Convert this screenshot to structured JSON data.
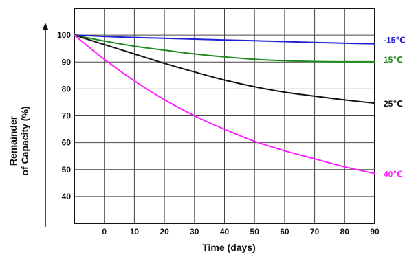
{
  "chart_data": {
    "type": "line",
    "title": "",
    "xlabel": "Time (days)",
    "ylabel_lines": [
      "Remainder",
      "of Capacity (%)"
    ],
    "xlim": [
      -10,
      90
    ],
    "ylim": [
      30,
      110
    ],
    "x_ticks": [
      0,
      10,
      20,
      30,
      40,
      50,
      60,
      70,
      80,
      90
    ],
    "y_ticks": [
      40,
      50,
      60,
      70,
      80,
      90,
      100
    ],
    "grid": true,
    "legend": "right-end labels",
    "series": [
      {
        "name": "-15℃",
        "color": "#1f1fd6",
        "x": [
          -10,
          0,
          10,
          20,
          30,
          40,
          50,
          60,
          70,
          80,
          90
        ],
        "y": [
          100,
          99.5,
          99.1,
          98.8,
          98.5,
          98.2,
          97.9,
          97.6,
          97.3,
          97.0,
          96.8
        ]
      },
      {
        "name": "15℃",
        "color": "#1e8a1e",
        "x": [
          -10,
          0,
          10,
          20,
          30,
          40,
          50,
          60,
          70,
          80,
          90
        ],
        "y": [
          100,
          97.8,
          95.9,
          94.4,
          93.0,
          91.9,
          91.0,
          90.5,
          90.2,
          90.1,
          90.1
        ]
      },
      {
        "name": "25℃",
        "color": "#111111",
        "x": [
          -10,
          0,
          10,
          20,
          30,
          40,
          50,
          60,
          70,
          80,
          90
        ],
        "y": [
          100,
          96.5,
          93.0,
          89.5,
          86.3,
          83.3,
          80.8,
          78.8,
          77.3,
          75.9,
          74.7
        ]
      },
      {
        "name": "40℃",
        "color": "#ff1fff",
        "x": [
          -10,
          0,
          10,
          20,
          30,
          40,
          50,
          60,
          70,
          80,
          90
        ],
        "y": [
          100,
          91.0,
          83.0,
          76.0,
          70.0,
          65.0,
          60.5,
          57.0,
          54.0,
          51.0,
          48.5
        ]
      }
    ]
  }
}
